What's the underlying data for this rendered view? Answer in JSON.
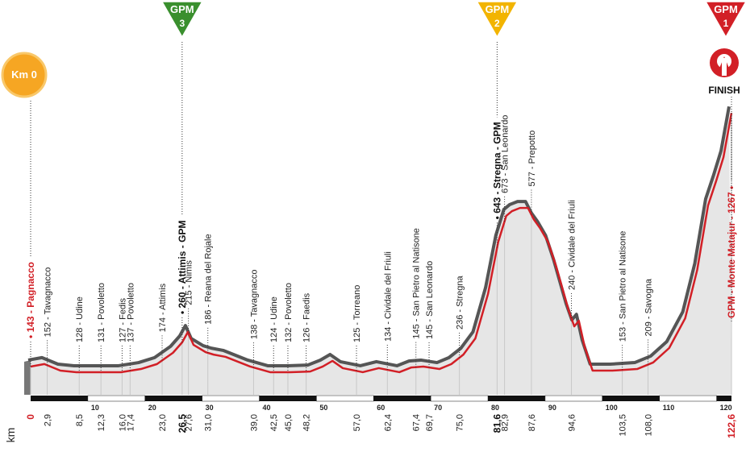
{
  "start_badge": "Km 0",
  "finish_label": "FINISH",
  "gpm_badges": [
    {
      "label": "GPM",
      "category": "3",
      "color": "#3a8f2e"
    },
    {
      "label": "GPM",
      "category": "2",
      "color": "#f2b400"
    },
    {
      "label": "GPM",
      "category": "1",
      "color": "#d21f26"
    }
  ],
  "chart_data": {
    "type": "profile",
    "x_label": "km",
    "xlim": [
      0,
      122.6
    ],
    "xticks": [
      10,
      20,
      30,
      40,
      50,
      60,
      70,
      80,
      90,
      100,
      110,
      120
    ],
    "line_color": "#d21f26",
    "shadow_color": "#555555",
    "fill_color": "#e6e6e6",
    "profile": {
      "x": [
        0,
        2.4,
        5.2,
        8.0,
        11.6,
        15.8,
        19.3,
        22.1,
        24.9,
        26.5,
        27.5,
        28.5,
        30.6,
        32.0,
        34.1,
        38.4,
        41.9,
        45.4,
        48.9,
        51.1,
        52.8,
        54.6,
        58.1,
        60.9,
        64.5,
        66.6,
        68.7,
        71.5,
        73.6,
        75.7,
        77.8,
        80.0,
        81.8,
        83.2,
        84.2,
        85.6,
        87.0,
        88.0,
        89.1,
        90.5,
        91.9,
        94.1,
        95.1,
        95.9,
        96.9,
        98.3,
        101.8,
        106.1,
        108.9,
        111.7,
        114.5,
        116.6,
        118.5,
        119.9,
        121.2,
        122.6
      ],
      "y": [
        143,
        154,
        125,
        118,
        118,
        118,
        132,
        154,
        204,
        250,
        296,
        239,
        207,
        196,
        186,
        143,
        118,
        118,
        121,
        143,
        168,
        136,
        118,
        136,
        118,
        139,
        143,
        132,
        154,
        196,
        268,
        464,
        696,
        811,
        832,
        846,
        846,
        796,
        757,
        696,
        589,
        393,
        321,
        346,
        232,
        125,
        125,
        132,
        161,
        225,
        357,
        571,
        857,
        964,
        1071,
        1267
      ]
    },
    "waypoints": [
      {
        "km": 0,
        "label": "• 143 - Pagnacco",
        "style": "red"
      },
      {
        "km": {
          "value": 2.9,
          "label": "2,9"
        },
        "label": "152 - Tavagnacco"
      },
      {
        "km": {
          "value": 8.5,
          "label": "8,5"
        },
        "label": "128 - Udine"
      },
      {
        "km": {
          "value": 12.3,
          "label": "12,3"
        },
        "label": "131 - Povoletto"
      },
      {
        "km": {
          "value": 16.0,
          "label": "16,0"
        },
        "label": "127 - Fedis"
      },
      {
        "km": {
          "value": 17.4,
          "label": "17,4"
        },
        "label": "137 - Povoletto"
      },
      {
        "km": {
          "value": 23.0,
          "label": "23,0"
        },
        "label": "174 - Attimis"
      },
      {
        "km": {
          "value": 26.5,
          "label": "26,5"
        },
        "label": "• 260 - Attimis - GPM",
        "style": "bold"
      },
      {
        "km": {
          "value": 27.6,
          "label": "27,6"
        },
        "label": "215 - Nimis"
      },
      {
        "km": {
          "value": 31.0,
          "label": "31,0"
        },
        "label": "186 - Reana del Rojale"
      },
      {
        "km": {
          "value": 39.0,
          "label": "39,0"
        },
        "label": "138 - Tavagnacco"
      },
      {
        "km": {
          "value": 42.5,
          "label": "42,5"
        },
        "label": "124 - Udine"
      },
      {
        "km": {
          "value": 45.0,
          "label": "45,0"
        },
        "label": "132 - Povoletto"
      },
      {
        "km": {
          "value": 48.2,
          "label": "48,2"
        },
        "label": "126 - Faedis"
      },
      {
        "km": {
          "value": 57.0,
          "label": "57,0"
        },
        "label": "125 - Torreano"
      },
      {
        "km": {
          "value": 62.4,
          "label": "62,4"
        },
        "label": "134 - Cividale del Friuli"
      },
      {
        "km": {
          "value": 67.4,
          "label": "67,4"
        },
        "label": "145 - San Pietro al Natisone"
      },
      {
        "km": {
          "value": 69.7,
          "label": "69,7"
        },
        "label": "145 - San Leonardo"
      },
      {
        "km": {
          "value": 75.0,
          "label": "75,0"
        },
        "label": "236 - Stregna"
      },
      {
        "km": {
          "value": 81.6,
          "label": "81,6"
        },
        "label": "• 643 - Stregna - GPM",
        "style": "bold"
      },
      {
        "km": {
          "value": 82.9,
          "label": "82,9"
        },
        "label": "673 - San Leonardo"
      },
      {
        "km": {
          "value": 87.6,
          "label": "87,6"
        },
        "label": "577 - Prepotto"
      },
      {
        "km": {
          "value": 94.6,
          "label": "94,6"
        },
        "label": "240 - Cividale del Friuli"
      },
      {
        "km": {
          "value": 103.5,
          "label": "103,5"
        },
        "label": "153 - San Pietro al Natisone"
      },
      {
        "km": {
          "value": 108.0,
          "label": "108,0"
        },
        "label": "209 - Savogna"
      },
      {
        "km": {
          "value": 122.6,
          "label": "122,6"
        },
        "label": "GPM - Monte Matajur - 1267 •",
        "style": "red"
      }
    ]
  }
}
